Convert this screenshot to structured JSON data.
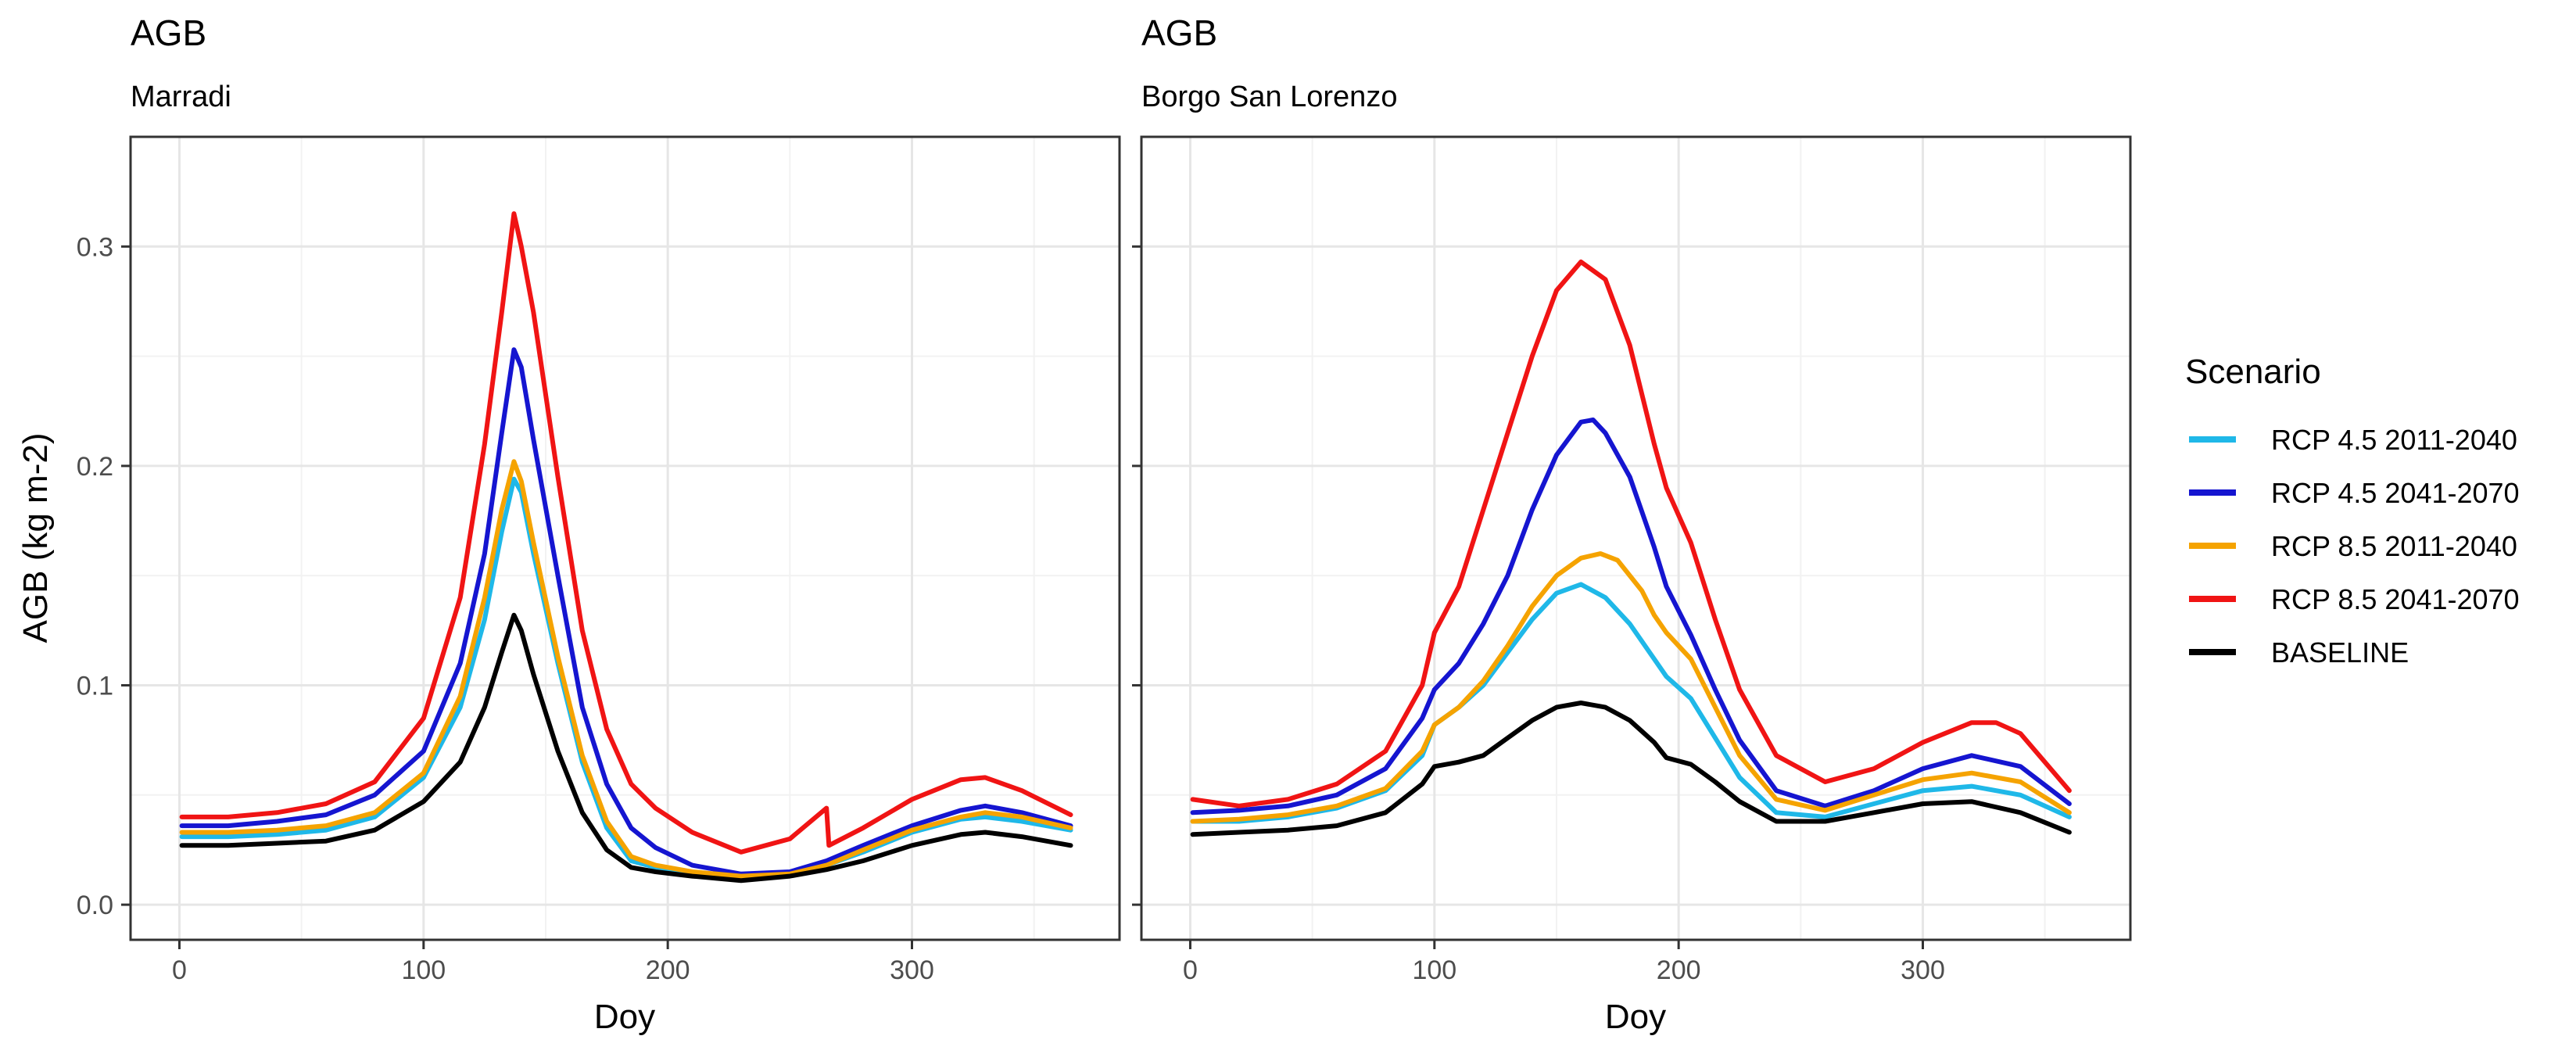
{
  "legend": {
    "title": "Scenario",
    "position": "right",
    "items": [
      {
        "name": "RCP 4.5 2011-2040",
        "color": "#1FB8E8"
      },
      {
        "name": "RCP 4.5 2041-2070",
        "color": "#1515D0"
      },
      {
        "name": "RCP 8.5 2011-2040",
        "color": "#F5A300"
      },
      {
        "name": "RCP 8.5 2041-2070",
        "color": "#F01414"
      },
      {
        "name": "BASELINE",
        "color": "#000000"
      }
    ]
  },
  "chart_data": [
    {
      "type": "line",
      "title": "AGB",
      "subtitle": "Marradi",
      "xlabel": "Doy",
      "ylabel": "AGB (kg m-2)",
      "xlim": [
        -20,
        385
      ],
      "ylim": [
        -0.016,
        0.35
      ],
      "xticks": [
        0,
        100,
        200,
        300
      ],
      "yticks": [
        0.0,
        0.1,
        0.2,
        0.3
      ],
      "xtick_labels": [
        "0",
        "100",
        "200",
        "300"
      ],
      "ytick_labels": [
        "0.0",
        "0.1",
        "0.2",
        "0.3"
      ],
      "grid": true,
      "series": [
        {
          "name": "RCP 4.5 2011-2040",
          "color": "#1FB8E8",
          "x": [
            1,
            20,
            40,
            60,
            80,
            100,
            115,
            125,
            132,
            137,
            140,
            145,
            155,
            165,
            175,
            185,
            195,
            210,
            230,
            250,
            265,
            280,
            300,
            320,
            330,
            345,
            365
          ],
          "y": [
            0.031,
            0.031,
            0.032,
            0.034,
            0.04,
            0.058,
            0.09,
            0.13,
            0.17,
            0.194,
            0.188,
            0.16,
            0.11,
            0.065,
            0.035,
            0.02,
            0.017,
            0.014,
            0.012,
            0.014,
            0.018,
            0.024,
            0.033,
            0.039,
            0.04,
            0.038,
            0.034
          ]
        },
        {
          "name": "RCP 4.5 2041-2070",
          "color": "#1515D0",
          "x": [
            1,
            20,
            40,
            60,
            80,
            100,
            115,
            125,
            132,
            137,
            140,
            145,
            155,
            165,
            175,
            185,
            195,
            210,
            230,
            250,
            265,
            280,
            300,
            320,
            330,
            345,
            365
          ],
          "y": [
            0.036,
            0.036,
            0.038,
            0.041,
            0.05,
            0.07,
            0.11,
            0.16,
            0.215,
            0.253,
            0.245,
            0.212,
            0.15,
            0.09,
            0.055,
            0.035,
            0.026,
            0.018,
            0.014,
            0.015,
            0.02,
            0.027,
            0.036,
            0.043,
            0.045,
            0.042,
            0.036
          ]
        },
        {
          "name": "RCP 8.5 2011-2040",
          "color": "#F5A300",
          "x": [
            1,
            20,
            40,
            60,
            80,
            100,
            115,
            125,
            132,
            137,
            140,
            145,
            155,
            165,
            175,
            185,
            195,
            210,
            230,
            250,
            265,
            280,
            300,
            320,
            330,
            345,
            365
          ],
          "y": [
            0.033,
            0.033,
            0.034,
            0.036,
            0.042,
            0.06,
            0.095,
            0.14,
            0.18,
            0.202,
            0.193,
            0.165,
            0.113,
            0.068,
            0.038,
            0.022,
            0.018,
            0.015,
            0.013,
            0.014,
            0.018,
            0.025,
            0.034,
            0.04,
            0.042,
            0.04,
            0.035
          ]
        },
        {
          "name": "RCP 8.5 2041-2070",
          "color": "#F01414",
          "x": [
            1,
            20,
            40,
            60,
            80,
            100,
            115,
            125,
            132,
            137,
            140,
            145,
            155,
            165,
            175,
            185,
            195,
            210,
            230,
            250,
            265,
            266,
            280,
            300,
            320,
            330,
            345,
            365
          ],
          "y": [
            0.04,
            0.04,
            0.042,
            0.046,
            0.056,
            0.085,
            0.14,
            0.21,
            0.27,
            0.315,
            0.3,
            0.27,
            0.195,
            0.125,
            0.08,
            0.055,
            0.044,
            0.033,
            0.024,
            0.03,
            0.044,
            0.027,
            0.035,
            0.048,
            0.057,
            0.058,
            0.052,
            0.041
          ]
        },
        {
          "name": "BASELINE",
          "color": "#000000",
          "x": [
            1,
            20,
            40,
            60,
            80,
            100,
            115,
            125,
            132,
            137,
            140,
            145,
            155,
            165,
            175,
            185,
            195,
            210,
            230,
            250,
            265,
            280,
            300,
            320,
            330,
            345,
            365
          ],
          "y": [
            0.027,
            0.027,
            0.028,
            0.029,
            0.034,
            0.047,
            0.065,
            0.09,
            0.115,
            0.132,
            0.125,
            0.105,
            0.07,
            0.042,
            0.025,
            0.017,
            0.015,
            0.013,
            0.011,
            0.013,
            0.016,
            0.02,
            0.027,
            0.032,
            0.033,
            0.031,
            0.027
          ]
        }
      ]
    },
    {
      "type": "line",
      "title": "AGB",
      "subtitle": "Borgo San Lorenzo",
      "xlabel": "Doy",
      "ylabel": "",
      "xlim": [
        -20,
        385
      ],
      "ylim": [
        -0.016,
        0.35
      ],
      "xticks": [
        0,
        100,
        200,
        300
      ],
      "yticks": [
        0.0,
        0.1,
        0.2,
        0.3
      ],
      "xtick_labels": [
        "0",
        "100",
        "200",
        "300"
      ],
      "ytick_labels": [],
      "grid": true,
      "series": [
        {
          "name": "RCP 4.5 2011-2040",
          "color": "#1FB8E8",
          "x": [
            1,
            20,
            40,
            60,
            80,
            95,
            100,
            110,
            120,
            130,
            140,
            150,
            160,
            170,
            180,
            190,
            195,
            205,
            215,
            225,
            240,
            260,
            280,
            300,
            320,
            340,
            360
          ],
          "y": [
            0.038,
            0.038,
            0.04,
            0.044,
            0.052,
            0.068,
            0.082,
            0.09,
            0.1,
            0.115,
            0.13,
            0.142,
            0.146,
            0.14,
            0.128,
            0.112,
            0.104,
            0.094,
            0.076,
            0.058,
            0.042,
            0.04,
            0.046,
            0.052,
            0.054,
            0.05,
            0.04
          ]
        },
        {
          "name": "RCP 4.5 2041-2070",
          "color": "#1515D0",
          "x": [
            1,
            20,
            40,
            60,
            80,
            95,
            100,
            110,
            120,
            130,
            140,
            150,
            160,
            165,
            170,
            180,
            190,
            195,
            205,
            215,
            225,
            240,
            260,
            280,
            300,
            320,
            340,
            360
          ],
          "y": [
            0.042,
            0.043,
            0.045,
            0.05,
            0.062,
            0.085,
            0.098,
            0.11,
            0.128,
            0.15,
            0.18,
            0.205,
            0.22,
            0.221,
            0.215,
            0.195,
            0.163,
            0.145,
            0.123,
            0.098,
            0.075,
            0.052,
            0.045,
            0.052,
            0.062,
            0.068,
            0.063,
            0.046
          ]
        },
        {
          "name": "RCP 8.5 2011-2040",
          "color": "#F5A300",
          "x": [
            1,
            20,
            40,
            60,
            80,
            95,
            100,
            110,
            120,
            130,
            140,
            150,
            160,
            168,
            175,
            185,
            190,
            195,
            205,
            215,
            225,
            240,
            260,
            280,
            300,
            320,
            340,
            360
          ],
          "y": [
            0.038,
            0.039,
            0.041,
            0.045,
            0.053,
            0.07,
            0.082,
            0.09,
            0.102,
            0.118,
            0.136,
            0.15,
            0.158,
            0.16,
            0.157,
            0.143,
            0.132,
            0.124,
            0.112,
            0.09,
            0.068,
            0.048,
            0.043,
            0.05,
            0.057,
            0.06,
            0.056,
            0.042
          ]
        },
        {
          "name": "RCP 8.5 2041-2070",
          "color": "#F01414",
          "x": [
            1,
            20,
            40,
            60,
            80,
            95,
            100,
            110,
            120,
            130,
            140,
            150,
            160,
            170,
            180,
            190,
            195,
            205,
            215,
            225,
            240,
            260,
            280,
            300,
            320,
            330,
            340,
            360
          ],
          "y": [
            0.048,
            0.045,
            0.048,
            0.055,
            0.07,
            0.1,
            0.124,
            0.145,
            0.18,
            0.215,
            0.25,
            0.28,
            0.293,
            0.285,
            0.255,
            0.21,
            0.19,
            0.165,
            0.13,
            0.098,
            0.068,
            0.056,
            0.062,
            0.074,
            0.083,
            0.083,
            0.078,
            0.052
          ]
        },
        {
          "name": "BASELINE",
          "color": "#000000",
          "x": [
            1,
            20,
            40,
            60,
            80,
            95,
            100,
            110,
            120,
            130,
            140,
            150,
            160,
            170,
            180,
            190,
            195,
            205,
            215,
            225,
            240,
            260,
            280,
            300,
            320,
            340,
            360
          ],
          "y": [
            0.032,
            0.033,
            0.034,
            0.036,
            0.042,
            0.055,
            0.063,
            0.065,
            0.068,
            0.076,
            0.084,
            0.09,
            0.092,
            0.09,
            0.084,
            0.074,
            0.067,
            0.064,
            0.056,
            0.047,
            0.038,
            0.038,
            0.042,
            0.046,
            0.047,
            0.042,
            0.033
          ]
        }
      ]
    }
  ]
}
